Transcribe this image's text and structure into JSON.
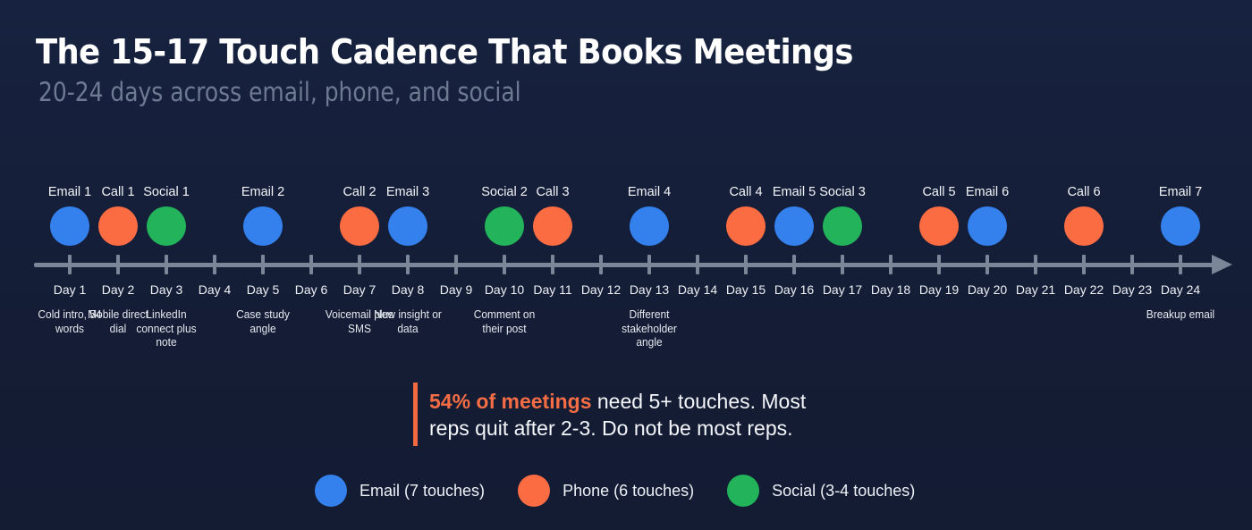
{
  "header": {
    "title": "The 15-17 Touch Cadence That Books Meetings",
    "subtitle": "20-24 days across email, phone, and social"
  },
  "colors": {
    "email": "#3481ee",
    "phone": "#fb6c43",
    "social": "#22b35b",
    "axis": "#7c8699",
    "background": "#141d35",
    "highlight": "#f56d44"
  },
  "timeline": {
    "days": [
      {
        "day": 1,
        "label": "Day 1",
        "touches": [
          {
            "label": "Email 1",
            "channel": "email"
          }
        ],
        "note": "Cold intro, 54 words"
      },
      {
        "day": 2,
        "label": "Day 2",
        "touches": [
          {
            "label": "Call 1",
            "channel": "phone"
          }
        ],
        "note": "Mobile direct dial"
      },
      {
        "day": 3,
        "label": "Day 3",
        "touches": [
          {
            "label": "Social 1",
            "channel": "social"
          }
        ],
        "note": "LinkedIn connect plus note"
      },
      {
        "day": 4,
        "label": "Day 4",
        "touches": [],
        "note": ""
      },
      {
        "day": 5,
        "label": "Day 5",
        "touches": [
          {
            "label": "Email 2",
            "channel": "email"
          }
        ],
        "note": "Case study angle"
      },
      {
        "day": 6,
        "label": "Day 6",
        "touches": [],
        "note": ""
      },
      {
        "day": 7,
        "label": "Day 7",
        "touches": [
          {
            "label": "Call 2",
            "channel": "phone"
          }
        ],
        "note": "Voicemail plus SMS"
      },
      {
        "day": 8,
        "label": "Day 8",
        "touches": [
          {
            "label": "Email 3",
            "channel": "email"
          }
        ],
        "note": "New insight or data"
      },
      {
        "day": 9,
        "label": "Day 9",
        "touches": [],
        "note": ""
      },
      {
        "day": 10,
        "label": "Day 10",
        "touches": [
          {
            "label": "Social 2",
            "channel": "social"
          }
        ],
        "note": "Comment on their post"
      },
      {
        "day": 11,
        "label": "Day 11",
        "touches": [
          {
            "label": "Call 3",
            "channel": "phone"
          }
        ],
        "note": ""
      },
      {
        "day": 12,
        "label": "Day 12",
        "touches": [],
        "note": ""
      },
      {
        "day": 13,
        "label": "Day 13",
        "touches": [
          {
            "label": "Email 4",
            "channel": "email"
          }
        ],
        "note": "Different stakeholder angle"
      },
      {
        "day": 14,
        "label": "Day 14",
        "touches": [],
        "note": ""
      },
      {
        "day": 15,
        "label": "Day 15",
        "touches": [
          {
            "label": "Call 4",
            "channel": "phone"
          }
        ],
        "note": ""
      },
      {
        "day": 16,
        "label": "Day 16",
        "touches": [
          {
            "label": "Email 5",
            "channel": "email"
          }
        ],
        "note": ""
      },
      {
        "day": 17,
        "label": "Day 17",
        "touches": [
          {
            "label": "Social 3",
            "channel": "social"
          }
        ],
        "note": ""
      },
      {
        "day": 18,
        "label": "Day 18",
        "touches": [],
        "note": ""
      },
      {
        "day": 19,
        "label": "Day 19",
        "touches": [
          {
            "label": "Call 5",
            "channel": "phone"
          }
        ],
        "note": ""
      },
      {
        "day": 20,
        "label": "Day 20",
        "touches": [
          {
            "label": "Email 6",
            "channel": "email"
          }
        ],
        "note": ""
      },
      {
        "day": 21,
        "label": "Day 21",
        "touches": [],
        "note": ""
      },
      {
        "day": 22,
        "label": "Day 22",
        "touches": [
          {
            "label": "Call 6",
            "channel": "phone"
          }
        ],
        "note": ""
      },
      {
        "day": 23,
        "label": "Day 23",
        "touches": [],
        "note": ""
      },
      {
        "day": 24,
        "label": "Day 24",
        "touches": [
          {
            "label": "Email 7",
            "channel": "email"
          }
        ],
        "note": "Breakup email"
      }
    ]
  },
  "callout": {
    "highlight": "54% of meetings",
    "text_line1": " need 5+ touches. Most",
    "text_line2": "reps quit after 2-3. Do not be most reps."
  },
  "legend": [
    {
      "channel": "email",
      "label": "Email (7 touches)"
    },
    {
      "channel": "phone",
      "label": "Phone (6 touches)"
    },
    {
      "channel": "social",
      "label": "Social (3-4 touches)"
    }
  ]
}
